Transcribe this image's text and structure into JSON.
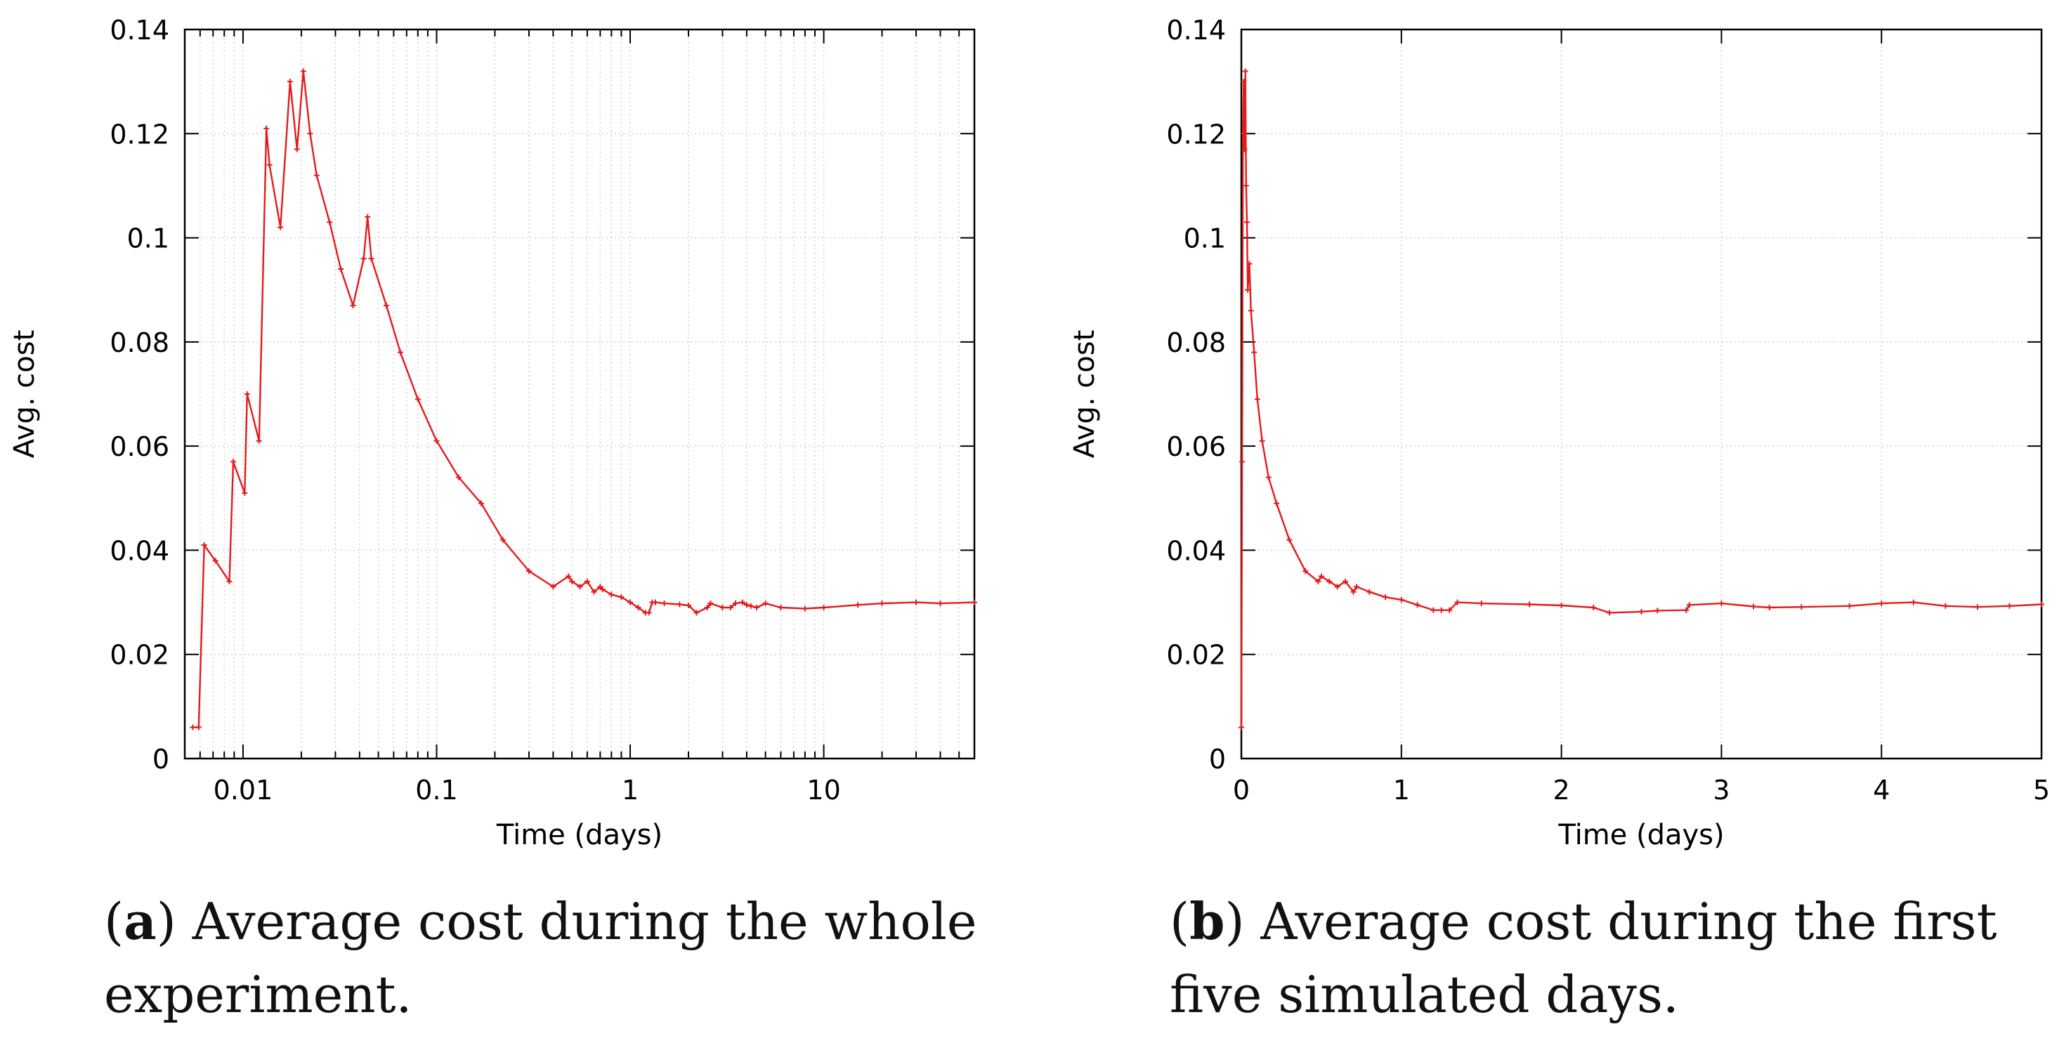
{
  "chart_data": [
    {
      "id": "a",
      "type": "line",
      "xscale": "log",
      "xlabel": "Time (days)",
      "ylabel": "Avg. cost",
      "xlim": [
        0.005,
        60
      ],
      "ylim": [
        0,
        0.14
      ],
      "xticks": [
        {
          "value": 0.01,
          "label": "0.01"
        },
        {
          "value": 0.1,
          "label": "0.1"
        },
        {
          "value": 1,
          "label": "1"
        },
        {
          "value": 10,
          "label": "10"
        }
      ],
      "yticks": [
        {
          "value": 0,
          "label": "0"
        },
        {
          "value": 0.02,
          "label": "0.02"
        },
        {
          "value": 0.04,
          "label": "0.04"
        },
        {
          "value": 0.06,
          "label": "0.06"
        },
        {
          "value": 0.08,
          "label": "0.08"
        },
        {
          "value": 0.1,
          "label": "0.1"
        },
        {
          "value": 0.12,
          "label": "0.12"
        },
        {
          "value": 0.14,
          "label": "0.14"
        }
      ],
      "grid": true,
      "series": [
        {
          "name": "Avg. cost",
          "color": "#e41a1c",
          "x": [
            0.0055,
            0.0059,
            0.0063,
            0.0072,
            0.0085,
            0.0089,
            0.0102,
            0.0105,
            0.0121,
            0.0132,
            0.0137,
            0.0156,
            0.0175,
            0.019,
            0.0205,
            0.0222,
            0.024,
            0.028,
            0.032,
            0.037,
            0.042,
            0.044,
            0.046,
            0.055,
            0.065,
            0.08,
            0.1,
            0.13,
            0.17,
            0.22,
            0.3,
            0.4,
            0.48,
            0.5,
            0.55,
            0.6,
            0.65,
            0.7,
            0.72,
            0.8,
            0.9,
            1.0,
            1.1,
            1.2,
            1.25,
            1.3,
            1.35,
            1.5,
            1.8,
            2.0,
            2.2,
            2.5,
            2.6,
            3.0,
            3.3,
            3.5,
            3.8,
            4.0,
            4.2,
            4.5,
            5.0,
            6.0,
            8.0,
            10.0,
            15.0,
            20.0,
            30.0,
            40.0,
            60.0
          ],
          "y": [
            0.006,
            0.006,
            0.041,
            0.038,
            0.034,
            0.057,
            0.051,
            0.07,
            0.061,
            0.121,
            0.114,
            0.102,
            0.13,
            0.117,
            0.132,
            0.12,
            0.112,
            0.103,
            0.094,
            0.087,
            0.096,
            0.104,
            0.096,
            0.087,
            0.078,
            0.069,
            0.061,
            0.054,
            0.049,
            0.042,
            0.036,
            0.033,
            0.035,
            0.034,
            0.033,
            0.034,
            0.032,
            0.033,
            0.0325,
            0.0315,
            0.031,
            0.03,
            0.029,
            0.028,
            0.028,
            0.03,
            0.03,
            0.0298,
            0.0296,
            0.0294,
            0.028,
            0.029,
            0.0298,
            0.029,
            0.029,
            0.0298,
            0.03,
            0.0295,
            0.0293,
            0.029,
            0.0298,
            0.029,
            0.0288,
            0.029,
            0.0295,
            0.0298,
            0.03,
            0.0298,
            0.03
          ]
        }
      ],
      "caption_letter": "a",
      "caption_text": "Average cost during the whole experiment."
    },
    {
      "id": "b",
      "type": "line",
      "xscale": "linear",
      "xlabel": "Time (days)",
      "ylabel": "Avg. cost",
      "xlim": [
        0,
        5
      ],
      "ylim": [
        0,
        0.14
      ],
      "xticks": [
        {
          "value": 0,
          "label": "0"
        },
        {
          "value": 1,
          "label": "1"
        },
        {
          "value": 2,
          "label": "2"
        },
        {
          "value": 3,
          "label": "3"
        },
        {
          "value": 4,
          "label": "4"
        },
        {
          "value": 5,
          "label": "5"
        }
      ],
      "yticks": [
        {
          "value": 0,
          "label": "0"
        },
        {
          "value": 0.02,
          "label": "0.02"
        },
        {
          "value": 0.04,
          "label": "0.04"
        },
        {
          "value": 0.06,
          "label": "0.06"
        },
        {
          "value": 0.08,
          "label": "0.08"
        },
        {
          "value": 0.1,
          "label": "0.1"
        },
        {
          "value": 0.12,
          "label": "0.12"
        },
        {
          "value": 0.14,
          "label": "0.14"
        }
      ],
      "grid": true,
      "series": [
        {
          "name": "Avg. cost",
          "color": "#e41a1c",
          "x": [
            0.0,
            0.005,
            0.01,
            0.015,
            0.02,
            0.025,
            0.03,
            0.035,
            0.04,
            0.05,
            0.06,
            0.08,
            0.1,
            0.13,
            0.17,
            0.22,
            0.3,
            0.4,
            0.48,
            0.5,
            0.55,
            0.6,
            0.65,
            0.7,
            0.72,
            0.8,
            0.9,
            1.0,
            1.1,
            1.2,
            1.25,
            1.3,
            1.35,
            1.5,
            1.8,
            2.0,
            2.2,
            2.3,
            2.5,
            2.6,
            2.78,
            2.8,
            3.0,
            3.2,
            3.3,
            3.5,
            3.8,
            4.0,
            4.2,
            4.4,
            4.6,
            4.8,
            5.0
          ],
          "y": [
            0.006,
            0.057,
            0.12,
            0.13,
            0.117,
            0.132,
            0.11,
            0.103,
            0.09,
            0.095,
            0.086,
            0.078,
            0.069,
            0.061,
            0.054,
            0.049,
            0.042,
            0.036,
            0.034,
            0.035,
            0.034,
            0.033,
            0.034,
            0.032,
            0.033,
            0.032,
            0.031,
            0.0305,
            0.0295,
            0.0285,
            0.0285,
            0.0285,
            0.03,
            0.0298,
            0.0296,
            0.0294,
            0.029,
            0.028,
            0.0282,
            0.0284,
            0.0285,
            0.0295,
            0.0298,
            0.0292,
            0.029,
            0.0291,
            0.0293,
            0.0298,
            0.03,
            0.0293,
            0.0291,
            0.0293,
            0.0296
          ]
        }
      ],
      "caption_letter": "b",
      "caption_text": "Average cost during the first five simulated days."
    }
  ]
}
